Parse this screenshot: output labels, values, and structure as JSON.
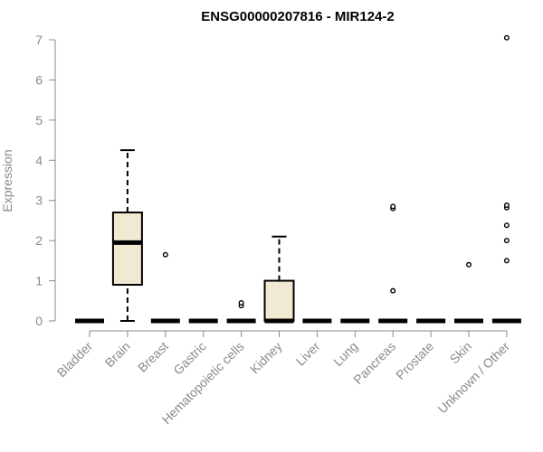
{
  "chart_data": {
    "type": "boxplot",
    "title": "ENSG00000207816 - MIR124-2",
    "xlabel": "",
    "ylabel": "Expression",
    "ylim": [
      0,
      7
    ],
    "yticks": [
      "0",
      "1",
      "2",
      "3",
      "4",
      "5",
      "6",
      "7"
    ],
    "grid": false,
    "box_color": "#f0ead2",
    "categories": [
      "Bladder",
      "Brain",
      "Breast",
      "Gastric",
      "Hematopoietic cells",
      "Kidney",
      "Liver",
      "Lung",
      "Pancreas",
      "Prostate",
      "Skin",
      "Unknown / Other"
    ],
    "boxes": [
      {
        "min": 0,
        "q1": 0,
        "median": 0,
        "q3": 0,
        "max": 0,
        "outliers": []
      },
      {
        "min": 0,
        "q1": 0.9,
        "median": 1.95,
        "q3": 2.7,
        "max": 4.25,
        "outliers": []
      },
      {
        "min": 0,
        "q1": 0,
        "median": 0,
        "q3": 0,
        "max": 0,
        "outliers": [
          1.65
        ]
      },
      {
        "min": 0,
        "q1": 0,
        "median": 0,
        "q3": 0,
        "max": 0,
        "outliers": []
      },
      {
        "min": 0,
        "q1": 0,
        "median": 0,
        "q3": 0,
        "max": 0,
        "outliers": [
          0.38,
          0.45
        ]
      },
      {
        "min": 0,
        "q1": 0,
        "median": 0,
        "q3": 1.0,
        "max": 2.1,
        "outliers": []
      },
      {
        "min": 0,
        "q1": 0,
        "median": 0,
        "q3": 0,
        "max": 0,
        "outliers": []
      },
      {
        "min": 0,
        "q1": 0,
        "median": 0,
        "q3": 0,
        "max": 0,
        "outliers": []
      },
      {
        "min": 0,
        "q1": 0,
        "median": 0,
        "q3": 0,
        "max": 0,
        "outliers": [
          0.75,
          2.8,
          2.85
        ]
      },
      {
        "min": 0,
        "q1": 0,
        "median": 0,
        "q3": 0,
        "max": 0,
        "outliers": []
      },
      {
        "min": 0,
        "q1": 0,
        "median": 0,
        "q3": 0,
        "max": 0,
        "outliers": [
          1.4
        ]
      },
      {
        "min": 0,
        "q1": 0,
        "median": 0,
        "q3": 0,
        "max": 0,
        "outliers": [
          1.5,
          2.0,
          2.38,
          2.82,
          2.88,
          7.05
        ]
      }
    ]
  }
}
